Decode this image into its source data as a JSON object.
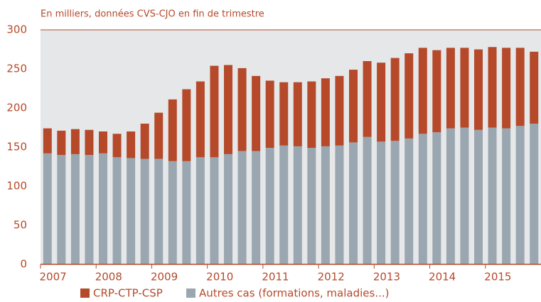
{
  "chart_data": {
    "type": "stacked_bar",
    "subtitle": "En milliers, données CVS-CJO en fin de trimestre",
    "categories": [
      "2007",
      null,
      null,
      null,
      "2008",
      null,
      null,
      null,
      "2009",
      null,
      null,
      null,
      "2010",
      null,
      null,
      null,
      "2011",
      null,
      null,
      null,
      "2012",
      null,
      null,
      null,
      "2013",
      null,
      null,
      null,
      "2014",
      null,
      null,
      null,
      "2015",
      null,
      null,
      null
    ],
    "series": [
      {
        "name": "CRP-CTP-CSP",
        "color": "#b5492a",
        "values": [
          32,
          31,
          32,
          32,
          28,
          30,
          34,
          45,
          59,
          79,
          92,
          97,
          117,
          114,
          106,
          96,
          86,
          81,
          82,
          85,
          87,
          89,
          93,
          97,
          101,
          106,
          109,
          110,
          105,
          103,
          102,
          103,
          103,
          103,
          100,
          92
        ]
      },
      {
        "name": "Autres cas (formations,  maladies...)",
        "color": "#9aa7b0",
        "values": [
          142,
          140,
          141,
          140,
          142,
          137,
          136,
          135,
          135,
          132,
          132,
          137,
          137,
          141,
          145,
          145,
          149,
          152,
          151,
          149,
          151,
          152,
          156,
          163,
          157,
          158,
          161,
          167,
          169,
          174,
          175,
          172,
          175,
          174,
          177,
          180
        ]
      }
    ],
    "ylim": [
      0,
      300
    ],
    "yticks": [
      0,
      50,
      100,
      150,
      200,
      250,
      300
    ],
    "grid": false
  }
}
